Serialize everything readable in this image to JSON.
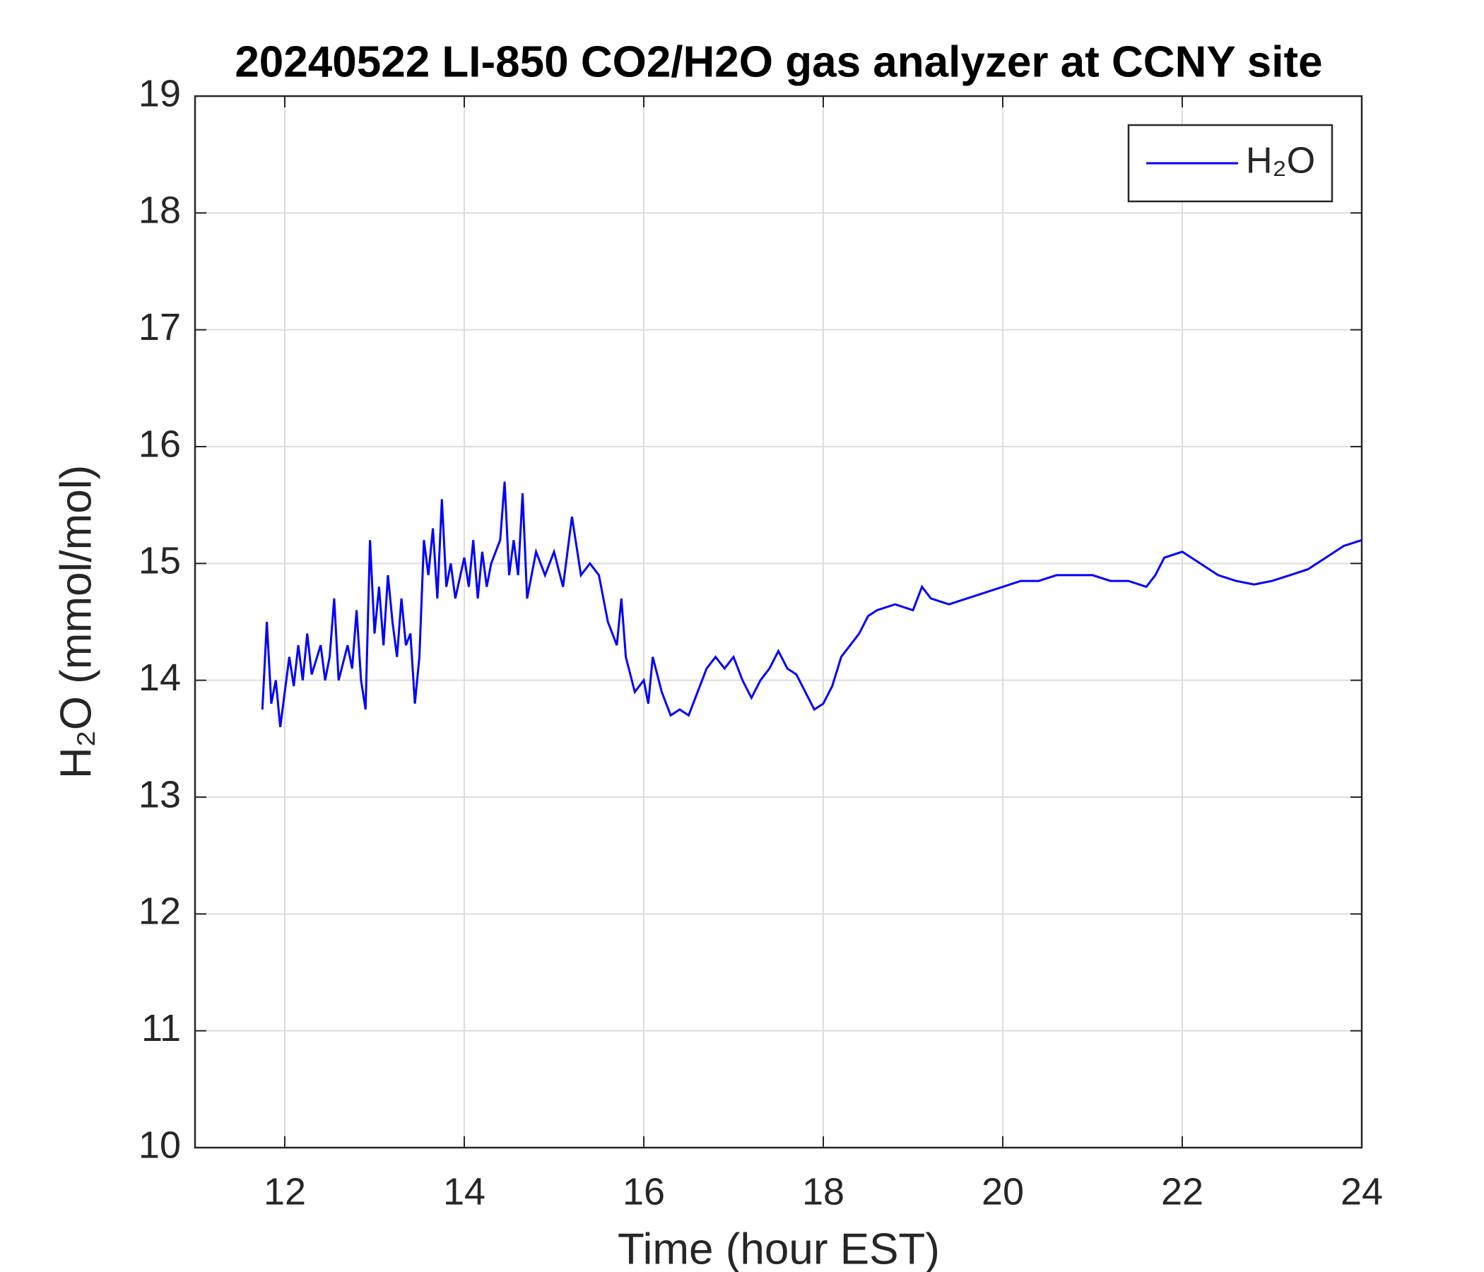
{
  "chart_data": {
    "type": "line",
    "title": "20240522 LI-850 CO2/H2O gas analyzer at CCNY site",
    "xlabel": "Time (hour EST)",
    "ylabel": "H₂O (mmol/mol)",
    "x": [
      11.75,
      11.8,
      11.85,
      11.9,
      11.95,
      12.0,
      12.05,
      12.1,
      12.15,
      12.2,
      12.25,
      12.3,
      12.4,
      12.45,
      12.5,
      12.55,
      12.6,
      12.7,
      12.75,
      12.8,
      12.85,
      12.9,
      12.95,
      13.0,
      13.05,
      13.1,
      13.15,
      13.2,
      13.25,
      13.3,
      13.35,
      13.4,
      13.45,
      13.5,
      13.55,
      13.6,
      13.65,
      13.7,
      13.75,
      13.8,
      13.85,
      13.9,
      14.0,
      14.05,
      14.1,
      14.15,
      14.2,
      14.25,
      14.3,
      14.4,
      14.45,
      14.5,
      14.55,
      14.6,
      14.65,
      14.7,
      14.8,
      14.9,
      15.0,
      15.1,
      15.2,
      15.3,
      15.4,
      15.5,
      15.6,
      15.7,
      15.75,
      15.8,
      15.9,
      16.0,
      16.05,
      16.1,
      16.2,
      16.3,
      16.4,
      16.5,
      16.6,
      16.7,
      16.8,
      16.9,
      17.0,
      17.1,
      17.2,
      17.3,
      17.4,
      17.5,
      17.6,
      17.7,
      17.8,
      17.9,
      18.0,
      18.1,
      18.2,
      18.3,
      18.4,
      18.5,
      18.6,
      18.8,
      19.0,
      19.1,
      19.2,
      19.4,
      19.6,
      19.8,
      20.0,
      20.2,
      20.4,
      20.6,
      20.8,
      21.0,
      21.2,
      21.4,
      21.6,
      21.7,
      21.8,
      22.0,
      22.2,
      22.4,
      22.6,
      22.8,
      23.0,
      23.2,
      23.4,
      23.6,
      23.8,
      24.0
    ],
    "series": [
      {
        "name": "H₂O",
        "color": "#0000ff",
        "values": [
          13.75,
          14.5,
          13.8,
          14.0,
          13.6,
          13.9,
          14.2,
          13.95,
          14.3,
          14.0,
          14.4,
          14.05,
          14.3,
          14.0,
          14.2,
          14.7,
          14.0,
          14.3,
          14.1,
          14.6,
          14.0,
          13.75,
          15.2,
          14.4,
          14.8,
          14.3,
          14.9,
          14.5,
          14.2,
          14.7,
          14.3,
          14.4,
          13.8,
          14.2,
          15.2,
          14.9,
          15.3,
          14.7,
          15.55,
          14.8,
          15.0,
          14.7,
          15.05,
          14.8,
          15.2,
          14.7,
          15.1,
          14.8,
          15.0,
          15.2,
          15.7,
          14.9,
          15.2,
          14.9,
          15.6,
          14.7,
          15.1,
          14.9,
          15.1,
          14.8,
          15.4,
          14.9,
          15.0,
          14.9,
          14.5,
          14.3,
          14.7,
          14.2,
          13.9,
          14.0,
          13.8,
          14.2,
          13.9,
          13.7,
          13.75,
          13.7,
          13.9,
          14.1,
          14.2,
          14.1,
          14.2,
          14.0,
          13.85,
          14.0,
          14.1,
          14.25,
          14.1,
          14.05,
          13.9,
          13.75,
          13.8,
          13.95,
          14.2,
          14.3,
          14.4,
          14.55,
          14.6,
          14.65,
          14.6,
          14.8,
          14.7,
          14.65,
          14.7,
          14.75,
          14.8,
          14.85,
          14.85,
          14.9,
          14.9,
          14.9,
          14.85,
          14.85,
          14.8,
          14.9,
          15.05,
          15.1,
          15.0,
          14.9,
          14.85,
          14.82,
          14.85,
          14.9,
          14.95,
          15.05,
          15.15,
          15.2
        ]
      }
    ],
    "xlim": [
      11,
      24
    ],
    "xticks": [
      12,
      14,
      16,
      18,
      20,
      22,
      24
    ],
    "ylim": [
      10,
      19
    ],
    "yticks": [
      10,
      11,
      12,
      13,
      14,
      15,
      16,
      17,
      18,
      19
    ],
    "grid": true,
    "legend": "northeast"
  }
}
